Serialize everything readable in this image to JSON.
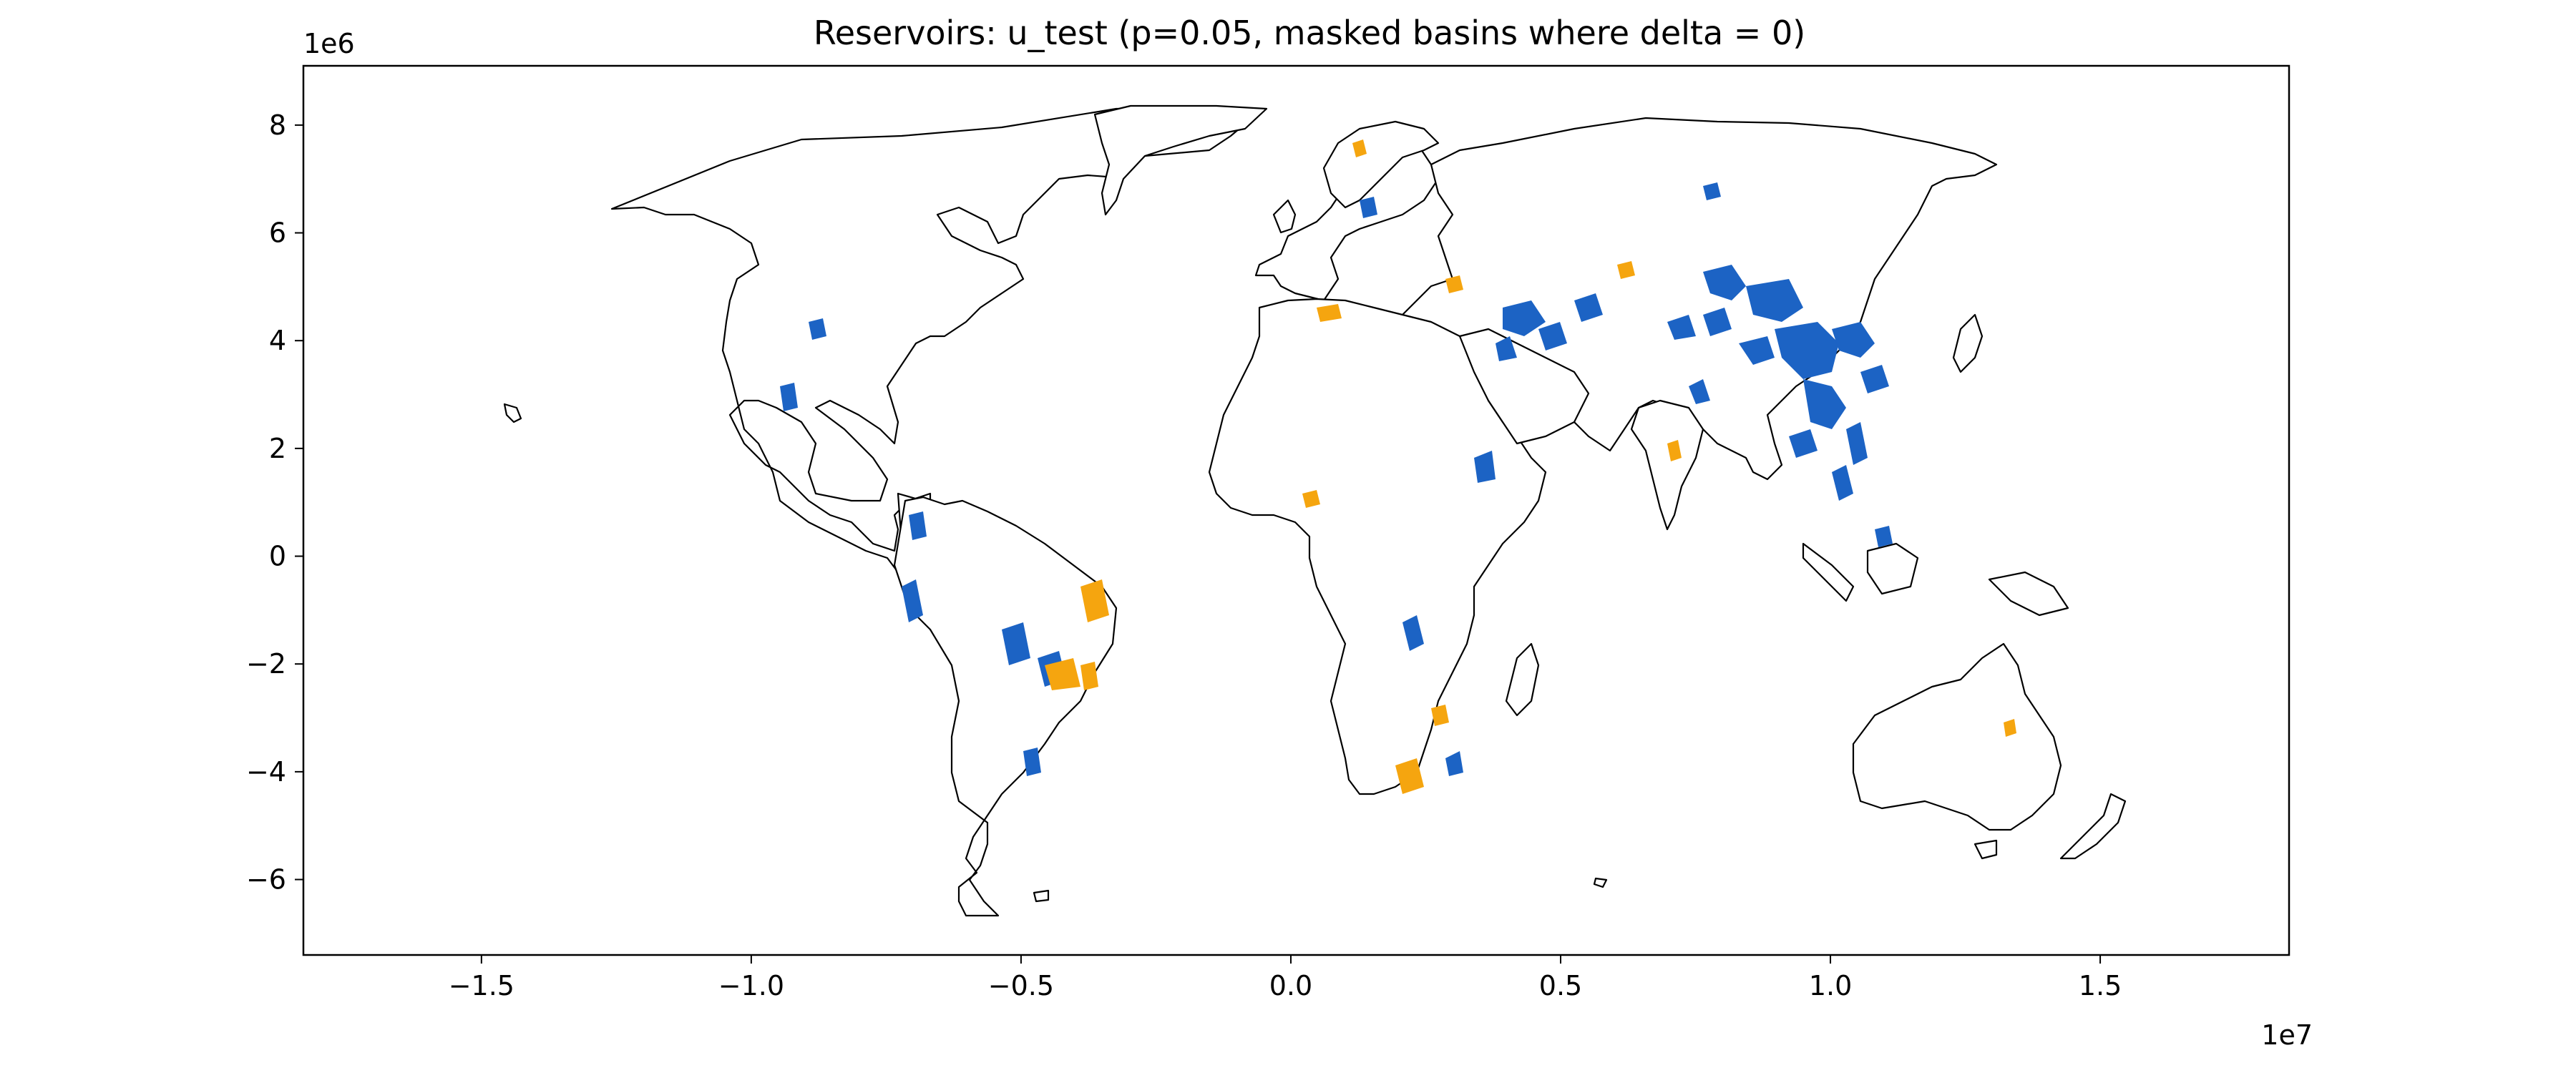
{
  "figure": {
    "title": "Reservoirs: u_test (p=0.05, masked basins where delta = 0)",
    "x_offset_label": "1e7",
    "y_offset_label": "1e6"
  },
  "map": {
    "projection": "equirectangular-metres",
    "xlim": [
      -18300000.0,
      18500000.0
    ],
    "ylim": [
      -7400000.0,
      9100000.0
    ],
    "x_ticks": [
      {
        "value": -1.5,
        "label": "−1.5"
      },
      {
        "value": -1.0,
        "label": "−1.0"
      },
      {
        "value": -0.5,
        "label": "−0.5"
      },
      {
        "value": 0.0,
        "label": "0.0"
      },
      {
        "value": 0.5,
        "label": "0.5"
      },
      {
        "value": 1.0,
        "label": "1.0"
      },
      {
        "value": 1.5,
        "label": "1.5"
      }
    ],
    "y_ticks": [
      {
        "value": 8,
        "label": "8"
      },
      {
        "value": 6,
        "label": "6"
      },
      {
        "value": 4,
        "label": "4"
      },
      {
        "value": 2,
        "label": "2"
      },
      {
        "value": 0,
        "label": "0"
      },
      {
        "value": -2,
        "label": "−2"
      },
      {
        "value": -4,
        "label": "−4"
      },
      {
        "value": -6,
        "label": "−6"
      }
    ],
    "colors": {
      "blue_basins": "#1c63c4",
      "orange_basins": "#f5a50f",
      "coastline": "#000000",
      "land": "#ffffff"
    }
  }
}
